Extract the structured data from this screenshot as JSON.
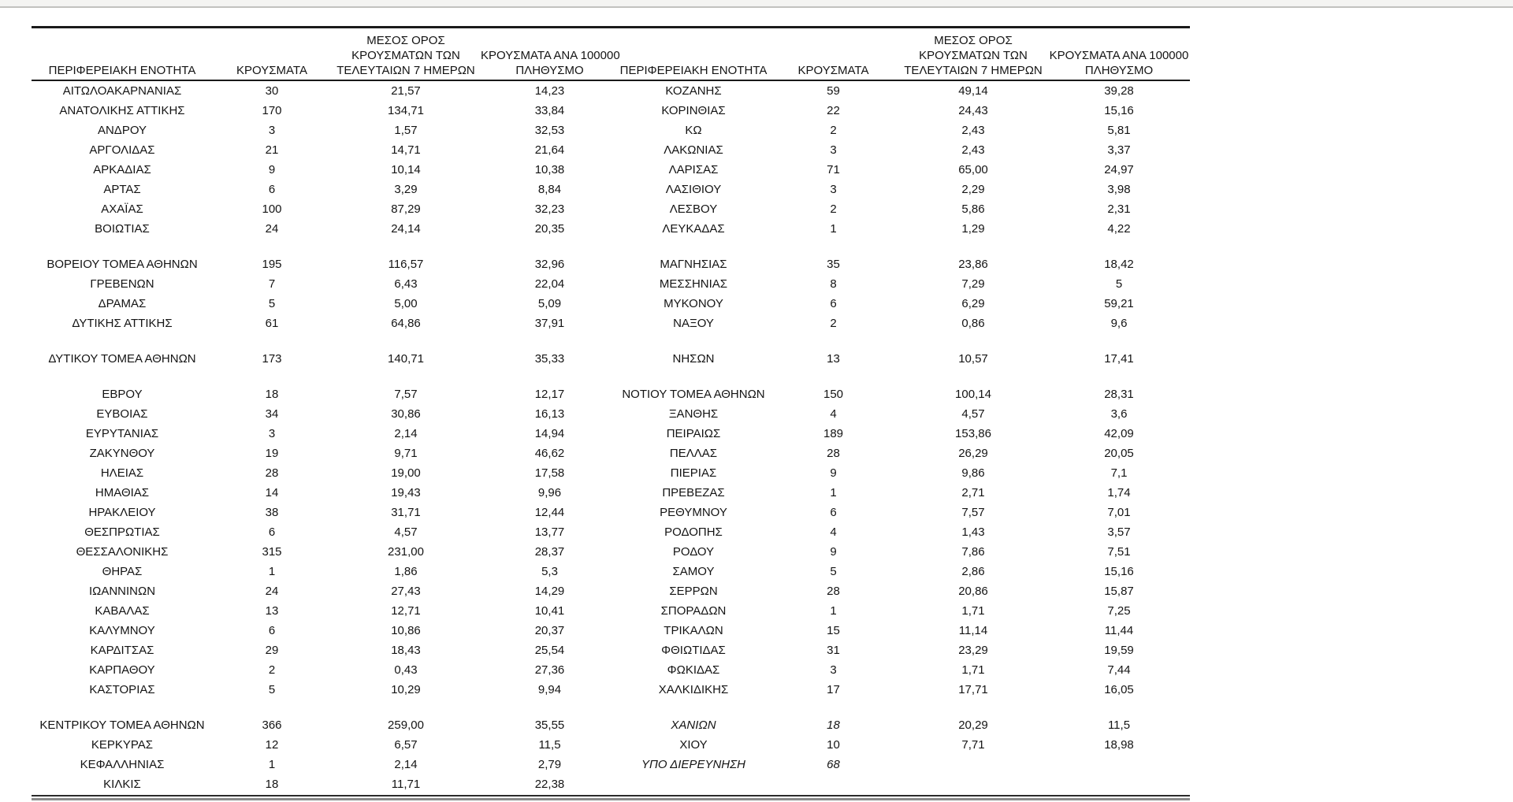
{
  "page": {
    "background_color": "#ffffff",
    "top_strip_color": "#f4f4f2",
    "top_rule_color": "#c2c2bf",
    "text_color": "#141414",
    "border_color": "#1a1a1a"
  },
  "table": {
    "headers": {
      "region": "ΠΕΡΙΦΕΡΕΙΑΚΗ ΕΝΟΤΗΤΑ",
      "cases": "ΚΡΟΥΣΜΑΤΑ",
      "avg7": "ΜΕΣΟΣ ΟΡΟΣ\nΚΡΟΥΣΜΑΤΩΝ ΤΩΝ\nΤΕΛΕΥΤΑΙΩΝ 7 ΗΜΕΡΩΝ",
      "per100k": "ΚΡΟΥΣΜΑΤΑ ΑΝΑ 100000\nΠΛΗΘΥΣΜΟ"
    },
    "left_rows": [
      {
        "name": "ΑΙΤΩΛΟΑΚΑΡΝΑΝΙΑΣ",
        "cases": "30",
        "avg7": "21,57",
        "per100k": "14,23"
      },
      {
        "name": "ΑΝΑΤΟΛΙΚΗΣ ΑΤΤΙΚΗΣ",
        "cases": "170",
        "avg7": "134,71",
        "per100k": "33,84"
      },
      {
        "name": "ΑΝΔΡΟΥ",
        "cases": "3",
        "avg7": "1,57",
        "per100k": "32,53"
      },
      {
        "name": "ΑΡΓΟΛΙΔΑΣ",
        "cases": "21",
        "avg7": "14,71",
        "per100k": "21,64"
      },
      {
        "name": "ΑΡΚΑΔΙΑΣ",
        "cases": "9",
        "avg7": "10,14",
        "per100k": "10,38"
      },
      {
        "name": "ΑΡΤΑΣ",
        "cases": "6",
        "avg7": "3,29",
        "per100k": "8,84"
      },
      {
        "name": "ΑΧΑΪΑΣ",
        "cases": "100",
        "avg7": "87,29",
        "per100k": "32,23"
      },
      {
        "name": "ΒΟΙΩΤΙΑΣ",
        "cases": "24",
        "avg7": "24,14",
        "per100k": "20,35"
      },
      null,
      {
        "name": "ΒΟΡΕΙΟΥ ΤΟΜΕΑ ΑΘΗΝΩΝ",
        "cases": "195",
        "avg7": "116,57",
        "per100k": "32,96"
      },
      {
        "name": "ΓΡΕΒΕΝΩΝ",
        "cases": "7",
        "avg7": "6,43",
        "per100k": "22,04"
      },
      {
        "name": "ΔΡΑΜΑΣ",
        "cases": "5",
        "avg7": "5,00",
        "per100k": "5,09"
      },
      {
        "name": "ΔΥΤΙΚΗΣ ΑΤΤΙΚΗΣ",
        "cases": "61",
        "avg7": "64,86",
        "per100k": "37,91"
      },
      null,
      {
        "name": "ΔΥΤΙΚΟΥ ΤΟΜΕΑ ΑΘΗΝΩΝ",
        "cases": "173",
        "avg7": "140,71",
        "per100k": "35,33"
      },
      null,
      {
        "name": "ΕΒΡΟΥ",
        "cases": "18",
        "avg7": "7,57",
        "per100k": "12,17"
      },
      {
        "name": "ΕΥΒΟΙΑΣ",
        "cases": "34",
        "avg7": "30,86",
        "per100k": "16,13"
      },
      {
        "name": "ΕΥΡΥΤΑΝΙΑΣ",
        "cases": "3",
        "avg7": "2,14",
        "per100k": "14,94"
      },
      {
        "name": "ΖΑΚΥΝΘΟΥ",
        "cases": "19",
        "avg7": "9,71",
        "per100k": "46,62"
      },
      {
        "name": "ΗΛΕΙΑΣ",
        "cases": "28",
        "avg7": "19,00",
        "per100k": "17,58"
      },
      {
        "name": "ΗΜΑΘΙΑΣ",
        "cases": "14",
        "avg7": "19,43",
        "per100k": "9,96"
      },
      {
        "name": "ΗΡΑΚΛΕΙΟΥ",
        "cases": "38",
        "avg7": "31,71",
        "per100k": "12,44"
      },
      {
        "name": "ΘΕΣΠΡΩΤΙΑΣ",
        "cases": "6",
        "avg7": "4,57",
        "per100k": "13,77"
      },
      {
        "name": "ΘΕΣΣΑΛΟΝΙΚΗΣ",
        "cases": "315",
        "avg7": "231,00",
        "per100k": "28,37"
      },
      {
        "name": "ΘΗΡΑΣ",
        "cases": "1",
        "avg7": "1,86",
        "per100k": "5,3"
      },
      {
        "name": "ΙΩΑΝΝΙΝΩΝ",
        "cases": "24",
        "avg7": "27,43",
        "per100k": "14,29"
      },
      {
        "name": "ΚΑΒΑΛΑΣ",
        "cases": "13",
        "avg7": "12,71",
        "per100k": "10,41"
      },
      {
        "name": "ΚΑΛΥΜΝΟΥ",
        "cases": "6",
        "avg7": "10,86",
        "per100k": "20,37"
      },
      {
        "name": "ΚΑΡΔΙΤΣΑΣ",
        "cases": "29",
        "avg7": "18,43",
        "per100k": "25,54"
      },
      {
        "name": "ΚΑΡΠΑΘΟΥ",
        "cases": "2",
        "avg7": "0,43",
        "per100k": "27,36"
      },
      {
        "name": "ΚΑΣΤΟΡΙΑΣ",
        "cases": "5",
        "avg7": "10,29",
        "per100k": "9,94"
      },
      null,
      {
        "name": "ΚΕΝΤΡΙΚΟΥ ΤΟΜΕΑ ΑΘΗΝΩΝ",
        "cases": "366",
        "avg7": "259,00",
        "per100k": "35,55"
      },
      {
        "name": "ΚΕΡΚΥΡΑΣ",
        "cases": "12",
        "avg7": "6,57",
        "per100k": "11,5"
      },
      {
        "name": "ΚΕΦΑΛΛΗΝΙΑΣ",
        "cases": "1",
        "avg7": "2,14",
        "per100k": "2,79"
      },
      {
        "name": "ΚΙΛΚΙΣ",
        "cases": "18",
        "avg7": "11,71",
        "per100k": "22,38"
      }
    ],
    "right_rows": [
      {
        "name": "ΚΟΖΑΝΗΣ",
        "cases": "59",
        "avg7": "49,14",
        "per100k": "39,28"
      },
      {
        "name": "ΚΟΡΙΝΘΙΑΣ",
        "cases": "22",
        "avg7": "24,43",
        "per100k": "15,16"
      },
      {
        "name": "ΚΩ",
        "cases": "2",
        "avg7": "2,43",
        "per100k": "5,81"
      },
      {
        "name": "ΛΑΚΩΝΙΑΣ",
        "cases": "3",
        "avg7": "2,43",
        "per100k": "3,37"
      },
      {
        "name": "ΛΑΡΙΣΑΣ",
        "cases": "71",
        "avg7": "65,00",
        "per100k": "24,97"
      },
      {
        "name": "ΛΑΣΙΘΙΟΥ",
        "cases": "3",
        "avg7": "2,29",
        "per100k": "3,98"
      },
      {
        "name": "ΛΕΣΒΟΥ",
        "cases": "2",
        "avg7": "5,86",
        "per100k": "2,31"
      },
      {
        "name": "ΛΕΥΚΑΔΑΣ",
        "cases": "1",
        "avg7": "1,29",
        "per100k": "4,22"
      },
      null,
      {
        "name": "ΜΑΓΝΗΣΙΑΣ",
        "cases": "35",
        "avg7": "23,86",
        "per100k": "18,42"
      },
      {
        "name": "ΜΕΣΣΗΝΙΑΣ",
        "cases": "8",
        "avg7": "7,29",
        "per100k": "5"
      },
      {
        "name": "ΜΥΚΟΝΟΥ",
        "cases": "6",
        "avg7": "6,29",
        "per100k": "59,21"
      },
      {
        "name": "ΝΑΞΟΥ",
        "cases": "2",
        "avg7": "0,86",
        "per100k": "9,6"
      },
      null,
      {
        "name": "ΝΗΣΩΝ",
        "cases": "13",
        "avg7": "10,57",
        "per100k": "17,41"
      },
      null,
      {
        "name": "ΝΟΤΙΟΥ ΤΟΜΕΑ ΑΘΗΝΩΝ",
        "cases": "150",
        "avg7": "100,14",
        "per100k": "28,31"
      },
      {
        "name": "ΞΑΝΘΗΣ",
        "cases": "4",
        "avg7": "4,57",
        "per100k": "3,6"
      },
      {
        "name": "ΠΕΙΡΑΙΩΣ",
        "cases": "189",
        "avg7": "153,86",
        "per100k": "42,09"
      },
      {
        "name": "ΠΕΛΛΑΣ",
        "cases": "28",
        "avg7": "26,29",
        "per100k": "20,05"
      },
      {
        "name": "ΠΙΕΡΙΑΣ",
        "cases": "9",
        "avg7": "9,86",
        "per100k": "7,1"
      },
      {
        "name": "ΠΡΕΒΕΖΑΣ",
        "cases": "1",
        "avg7": "2,71",
        "per100k": "1,74"
      },
      {
        "name": "ΡΕΘΥΜΝΟΥ",
        "cases": "6",
        "avg7": "7,57",
        "per100k": "7,01"
      },
      {
        "name": "ΡΟΔΟΠΗΣ",
        "cases": "4",
        "avg7": "1,43",
        "per100k": "3,57"
      },
      {
        "name": "ΡΟΔΟΥ",
        "cases": "9",
        "avg7": "7,86",
        "per100k": "7,51"
      },
      {
        "name": "ΣΑΜΟΥ",
        "cases": "5",
        "avg7": "2,86",
        "per100k": "15,16"
      },
      {
        "name": "ΣΕΡΡΩΝ",
        "cases": "28",
        "avg7": "20,86",
        "per100k": "15,87"
      },
      {
        "name": "ΣΠΟΡΑΔΩΝ",
        "cases": "1",
        "avg7": "1,71",
        "per100k": "7,25"
      },
      {
        "name": "ΤΡΙΚΑΛΩΝ",
        "cases": "15",
        "avg7": "11,14",
        "per100k": "11,44"
      },
      {
        "name": "ΦΘΙΩΤΙΔΑΣ",
        "cases": "31",
        "avg7": "23,29",
        "per100k": "19,59"
      },
      {
        "name": "ΦΩΚΙΔΑΣ",
        "cases": "3",
        "avg7": "1,71",
        "per100k": "7,44"
      },
      {
        "name": "ΧΑΛΚΙΔΙΚΗΣ",
        "cases": "17",
        "avg7": "17,71",
        "per100k": "16,05"
      },
      null,
      {
        "name": "ΧΑΝΙΩΝ",
        "cases": "18",
        "avg7": "20,29",
        "per100k": "11,5",
        "italic": true
      },
      {
        "name": "ΧΙΟΥ",
        "cases": "10",
        "avg7": "7,71",
        "per100k": "18,98"
      },
      {
        "name": "ΥΠΟ ΔΙΕΡΕΥΝΗΣΗ",
        "cases": "68",
        "avg7": "",
        "per100k": "",
        "italic": true
      },
      null
    ]
  }
}
